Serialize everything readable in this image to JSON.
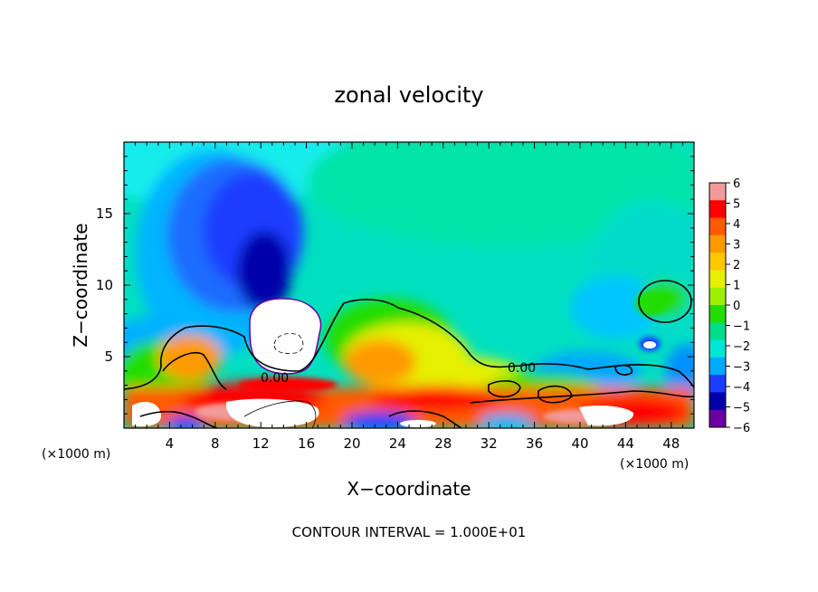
{
  "chart_data": {
    "type": "heatmap",
    "title": "zonal velocity",
    "xlabel": "X−coordinate",
    "ylabel": "Z−coordinate",
    "x_unit_left": "(×1000 m)",
    "x_unit_right": "(×1000 m)",
    "xlim": [
      0,
      50
    ],
    "ylim": [
      0,
      20
    ],
    "x_ticks": [
      4,
      8,
      12,
      16,
      20,
      24,
      28,
      32,
      36,
      40,
      44,
      48
    ],
    "y_ticks": [
      5,
      10,
      15
    ],
    "colorbar": {
      "range": [
        -6,
        6
      ],
      "ticks": [
        "6",
        "5",
        "4",
        "3",
        "2",
        "1",
        "0",
        "−1",
        "−2",
        "−3",
        "−4",
        "−5",
        "−6"
      ],
      "colors": [
        "#f29a9a",
        "#ff0000",
        "#ff5a00",
        "#ff9a00",
        "#ffc800",
        "#e6f000",
        "#9cf000",
        "#22dd00",
        "#00dd88",
        "#00e6d6",
        "#00aaff",
        "#1a3cff",
        "#0000aa",
        "#6a00a0"
      ]
    },
    "contour_labels": [
      "0.00",
      "0.00"
    ],
    "footer": "CONTOUR INTERVAL = 1.000E+01"
  }
}
